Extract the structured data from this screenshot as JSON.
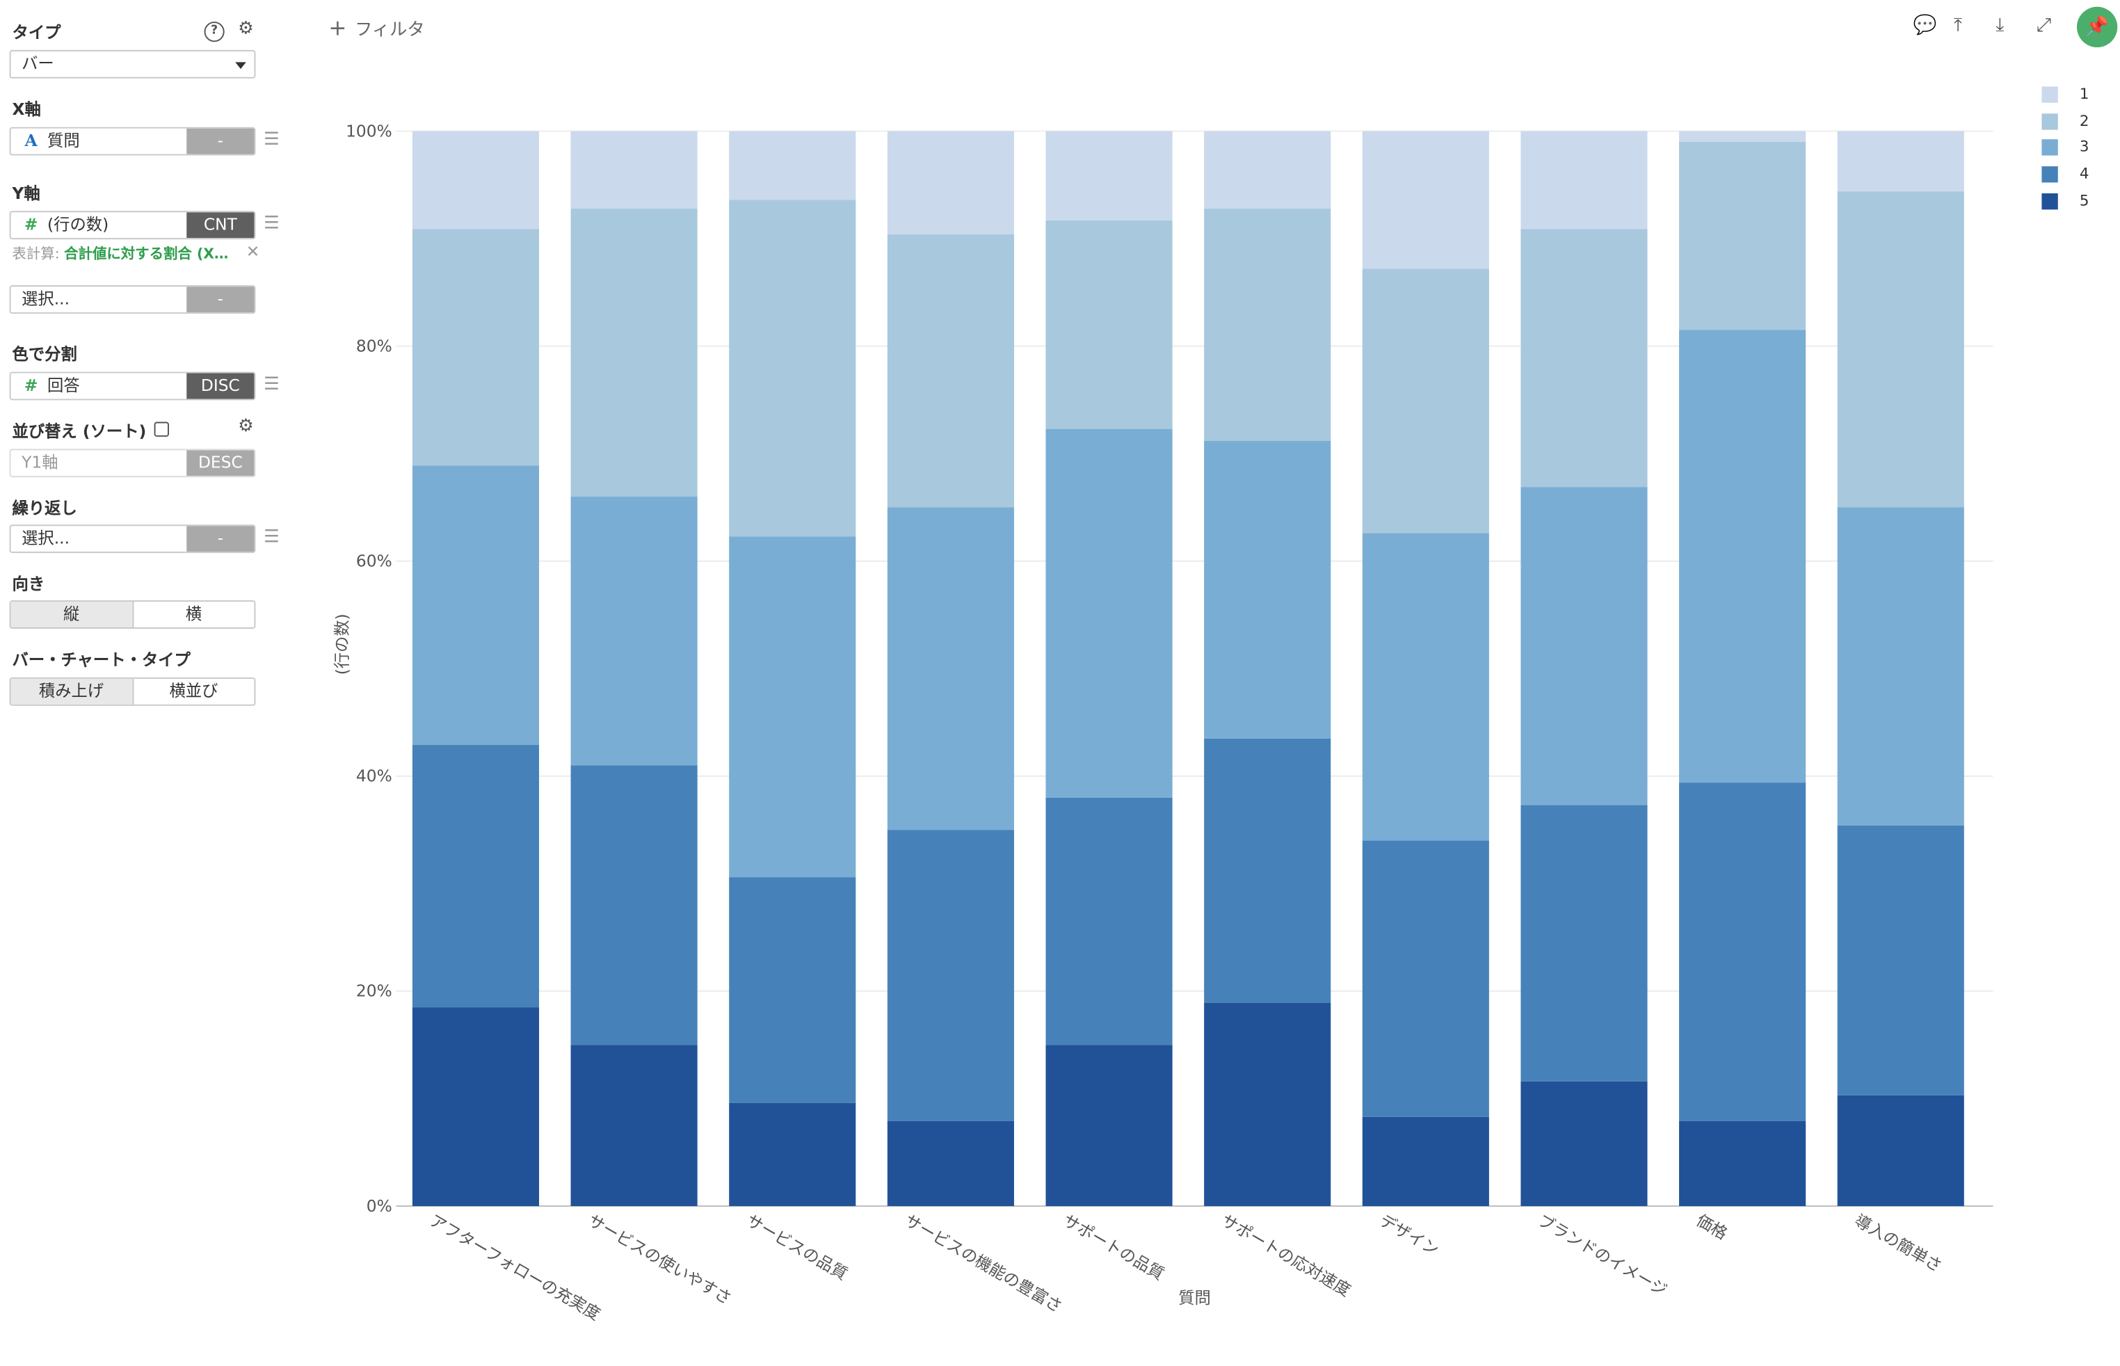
{
  "panel": {
    "type_section": {
      "label": "タイプ",
      "value": "バー"
    },
    "x_axis": {
      "label": "X軸",
      "field": "質問",
      "tag": "-"
    },
    "y_axis": {
      "label": "Y軸",
      "field": "(行の数)",
      "tag": "CNT",
      "calc_prefix": "表計算:",
      "calc_value": "合計値に対する割合 (X…",
      "second_field_placeholder": "選択...",
      "second_tag": "-"
    },
    "color": {
      "label": "色で分割",
      "field": "回答",
      "tag": "DISC"
    },
    "sort": {
      "label": "並び替え (ソート)",
      "field": "Y1軸",
      "tag": "DESC"
    },
    "repeat": {
      "label": "繰り返し",
      "field": "選択...",
      "tag": "-"
    },
    "orientation": {
      "label": "向き",
      "options": [
        "縦",
        "横"
      ],
      "selected": 0
    },
    "bar_type": {
      "label": "バー・チャート・タイプ",
      "options": [
        "積み上げ",
        "横並び"
      ],
      "selected": 0
    }
  },
  "topbar": {
    "filter_label": "フィルタ",
    "icons": [
      "comment-icon",
      "upload-icon",
      "download-icon",
      "expand-icon",
      "pin-icon"
    ]
  },
  "chart_data": {
    "type": "bar",
    "stacked": true,
    "xlabel": "質問",
    "ylabel": "(行の数)",
    "ylim": [
      0,
      100
    ],
    "yticks": [
      "0%",
      "20%",
      "40%",
      "60%",
      "80%",
      "100%"
    ],
    "categories": [
      "アフターフォローの充実度",
      "サービスの使いやすさ",
      "サービスの品質",
      "サービスの機能の豊富さ",
      "サポートの品質",
      "サポートの応対速度",
      "デザイン",
      "ブランドのイメージ",
      "価格",
      "導入の簡単さ"
    ],
    "series": [
      {
        "name": "5",
        "color": "#215297",
        "values": [
          18.5,
          15.0,
          9.6,
          7.9,
          15.0,
          18.9,
          8.3,
          11.6,
          7.9,
          10.3
        ]
      },
      {
        "name": "4",
        "color": "#4682b9",
        "values": [
          24.4,
          26.0,
          21.0,
          27.1,
          23.0,
          24.6,
          25.7,
          25.7,
          31.5,
          25.1
        ]
      },
      {
        "name": "3",
        "color": "#7aadd3",
        "values": [
          26.0,
          25.0,
          31.7,
          30.0,
          34.3,
          27.7,
          28.6,
          29.6,
          42.1,
          29.6
        ]
      },
      {
        "name": "2",
        "color": "#a8c8dd",
        "values": [
          22.0,
          26.8,
          31.3,
          25.4,
          19.4,
          21.6,
          24.6,
          24.0,
          17.5,
          29.4
        ]
      },
      {
        "name": "1",
        "color": "#cbd9ed",
        "values": [
          9.1,
          7.2,
          6.4,
          9.6,
          8.3,
          7.2,
          12.8,
          9.1,
          1.0,
          5.6
        ]
      }
    ],
    "legend_order": [
      "1",
      "2",
      "3",
      "4",
      "5"
    ],
    "legend_position": "top-right",
    "grid": true
  }
}
